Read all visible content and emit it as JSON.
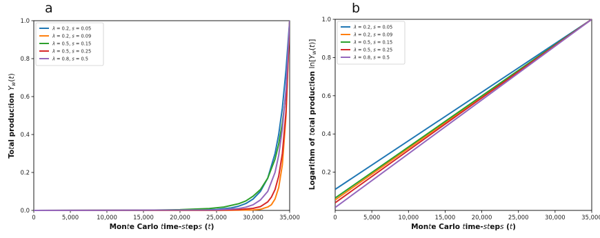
{
  "chart_data": [
    {
      "type": "line",
      "panel_label": "a",
      "xlabel": "Monte Carlo time-steps (t)",
      "ylabel": "Total production Y_w(t)",
      "xlim": [
        0,
        35000
      ],
      "ylim": [
        0,
        1.0
      ],
      "xticks": [
        "0",
        "5,000",
        "10,000",
        "15,000",
        "20,000",
        "25,000",
        "30,000",
        "35,000"
      ],
      "xtick_values": [
        0,
        5000,
        10000,
        15000,
        20000,
        25000,
        30000,
        35000
      ],
      "yticks": [
        "0.0",
        "0.2",
        "0.4",
        "0.6",
        "0.8",
        "1.0"
      ],
      "ytick_values": [
        0,
        0.2,
        0.4,
        0.6,
        0.8,
        1.0
      ],
      "grid": false,
      "legend_position": "top-left",
      "series": [
        {
          "name": "λ = 0.2, s = 0.05",
          "color": "#1f77b4",
          "x": [
            0,
            20000,
            25000,
            27000,
            28000,
            29000,
            30000,
            31000,
            32000,
            33000,
            33500,
            34000,
            34500,
            35000
          ],
          "y": [
            0,
            0.001,
            0.005,
            0.013,
            0.022,
            0.036,
            0.06,
            0.1,
            0.17,
            0.3,
            0.4,
            0.54,
            0.74,
            1.0
          ]
        },
        {
          "name": "λ = 0.2, s = 0.09",
          "color": "#ff7f0e",
          "x": [
            0,
            25000,
            30000,
            31000,
            32000,
            32500,
            33000,
            33500,
            34000,
            34500,
            35000
          ],
          "y": [
            0,
            0.0,
            0.002,
            0.006,
            0.018,
            0.03,
            0.06,
            0.12,
            0.24,
            0.5,
            1.0
          ]
        },
        {
          "name": "λ = 0.5, s = 0.15",
          "color": "#2ca02c",
          "x": [
            0,
            15000,
            20000,
            24000,
            26000,
            28000,
            29000,
            30000,
            31000,
            32000,
            33000,
            33500,
            34000,
            34500,
            35000
          ],
          "y": [
            0,
            0.001,
            0.004,
            0.01,
            0.018,
            0.035,
            0.05,
            0.075,
            0.11,
            0.17,
            0.27,
            0.35,
            0.46,
            0.62,
            1.0
          ]
        },
        {
          "name": "λ = 0.5, s = 0.25",
          "color": "#d62728",
          "x": [
            0,
            25000,
            28000,
            30000,
            31000,
            32000,
            32500,
            33000,
            33500,
            34000,
            34500,
            35000
          ],
          "y": [
            0,
            0.001,
            0.004,
            0.011,
            0.02,
            0.045,
            0.07,
            0.11,
            0.18,
            0.3,
            0.52,
            1.0
          ]
        },
        {
          "name": "λ = 0.8, s = 0.5",
          "color": "#9467bd",
          "x": [
            0,
            25000,
            28000,
            29000,
            30000,
            31000,
            32000,
            33000,
            33500,
            34000,
            34500,
            35000
          ],
          "y": [
            0,
            0.002,
            0.01,
            0.017,
            0.03,
            0.055,
            0.1,
            0.2,
            0.29,
            0.43,
            0.64,
            1.0
          ]
        }
      ]
    },
    {
      "type": "line",
      "panel_label": "b",
      "xlabel": "Monte Carlo time-steps (t)",
      "ylabel": "Logarithm of total production ln[Y_w(t)]",
      "xlim": [
        0,
        35000
      ],
      "ylim": [
        0,
        1.0
      ],
      "xticks": [
        "0",
        "5,000",
        "10,000",
        "15,000",
        "20,000",
        "25,000",
        "30,000",
        "35,000"
      ],
      "xtick_values": [
        0,
        5000,
        10000,
        15000,
        20000,
        25000,
        30000,
        35000
      ],
      "yticks": [
        "0.2",
        "0.4",
        "0.6",
        "0.8",
        "1.0"
      ],
      "ytick_values": [
        0.2,
        0.4,
        0.6,
        0.8,
        1.0
      ],
      "grid": false,
      "legend_position": "top-left",
      "series": [
        {
          "name": "λ = 0.2, s = 0.05",
          "color": "#1f77b4",
          "x": [
            0,
            35000
          ],
          "y": [
            0.11,
            1.0
          ]
        },
        {
          "name": "λ = 0.2, s = 0.09",
          "color": "#ff7f0e",
          "x": [
            0,
            35000
          ],
          "y": [
            0.055,
            1.0
          ]
        },
        {
          "name": "λ = 0.5, s = 0.15",
          "color": "#2ca02c",
          "x": [
            0,
            35000
          ],
          "y": [
            0.065,
            1.0
          ]
        },
        {
          "name": "λ = 0.5, s = 0.25",
          "color": "#d62728",
          "x": [
            0,
            35000
          ],
          "y": [
            0.04,
            1.0
          ]
        },
        {
          "name": "λ = 0.8, s = 0.5",
          "color": "#9467bd",
          "x": [
            0,
            35000
          ],
          "y": [
            0.015,
            1.0
          ]
        }
      ]
    }
  ]
}
